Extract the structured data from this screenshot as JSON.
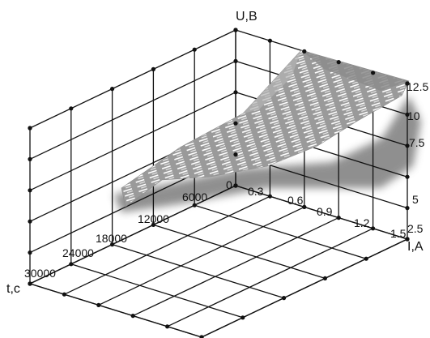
{
  "chart_data": {
    "type": "surface3d",
    "axes": {
      "z": {
        "label": "U,B",
        "ticks": [
          "2.5",
          "5",
          "7.5",
          "10",
          "12.5"
        ]
      },
      "x": {
        "label": "I,A",
        "ticks": [
          "0",
          "0.3",
          "0.6",
          "0.9",
          "1.2",
          "1.5"
        ]
      },
      "y": {
        "label": "t,c",
        "ticks": [
          "6000",
          "12000",
          "18000",
          "24000",
          "30000"
        ]
      }
    },
    "grid": true,
    "surface_color": "#9a9a9a",
    "shadow_color": "#555555"
  }
}
